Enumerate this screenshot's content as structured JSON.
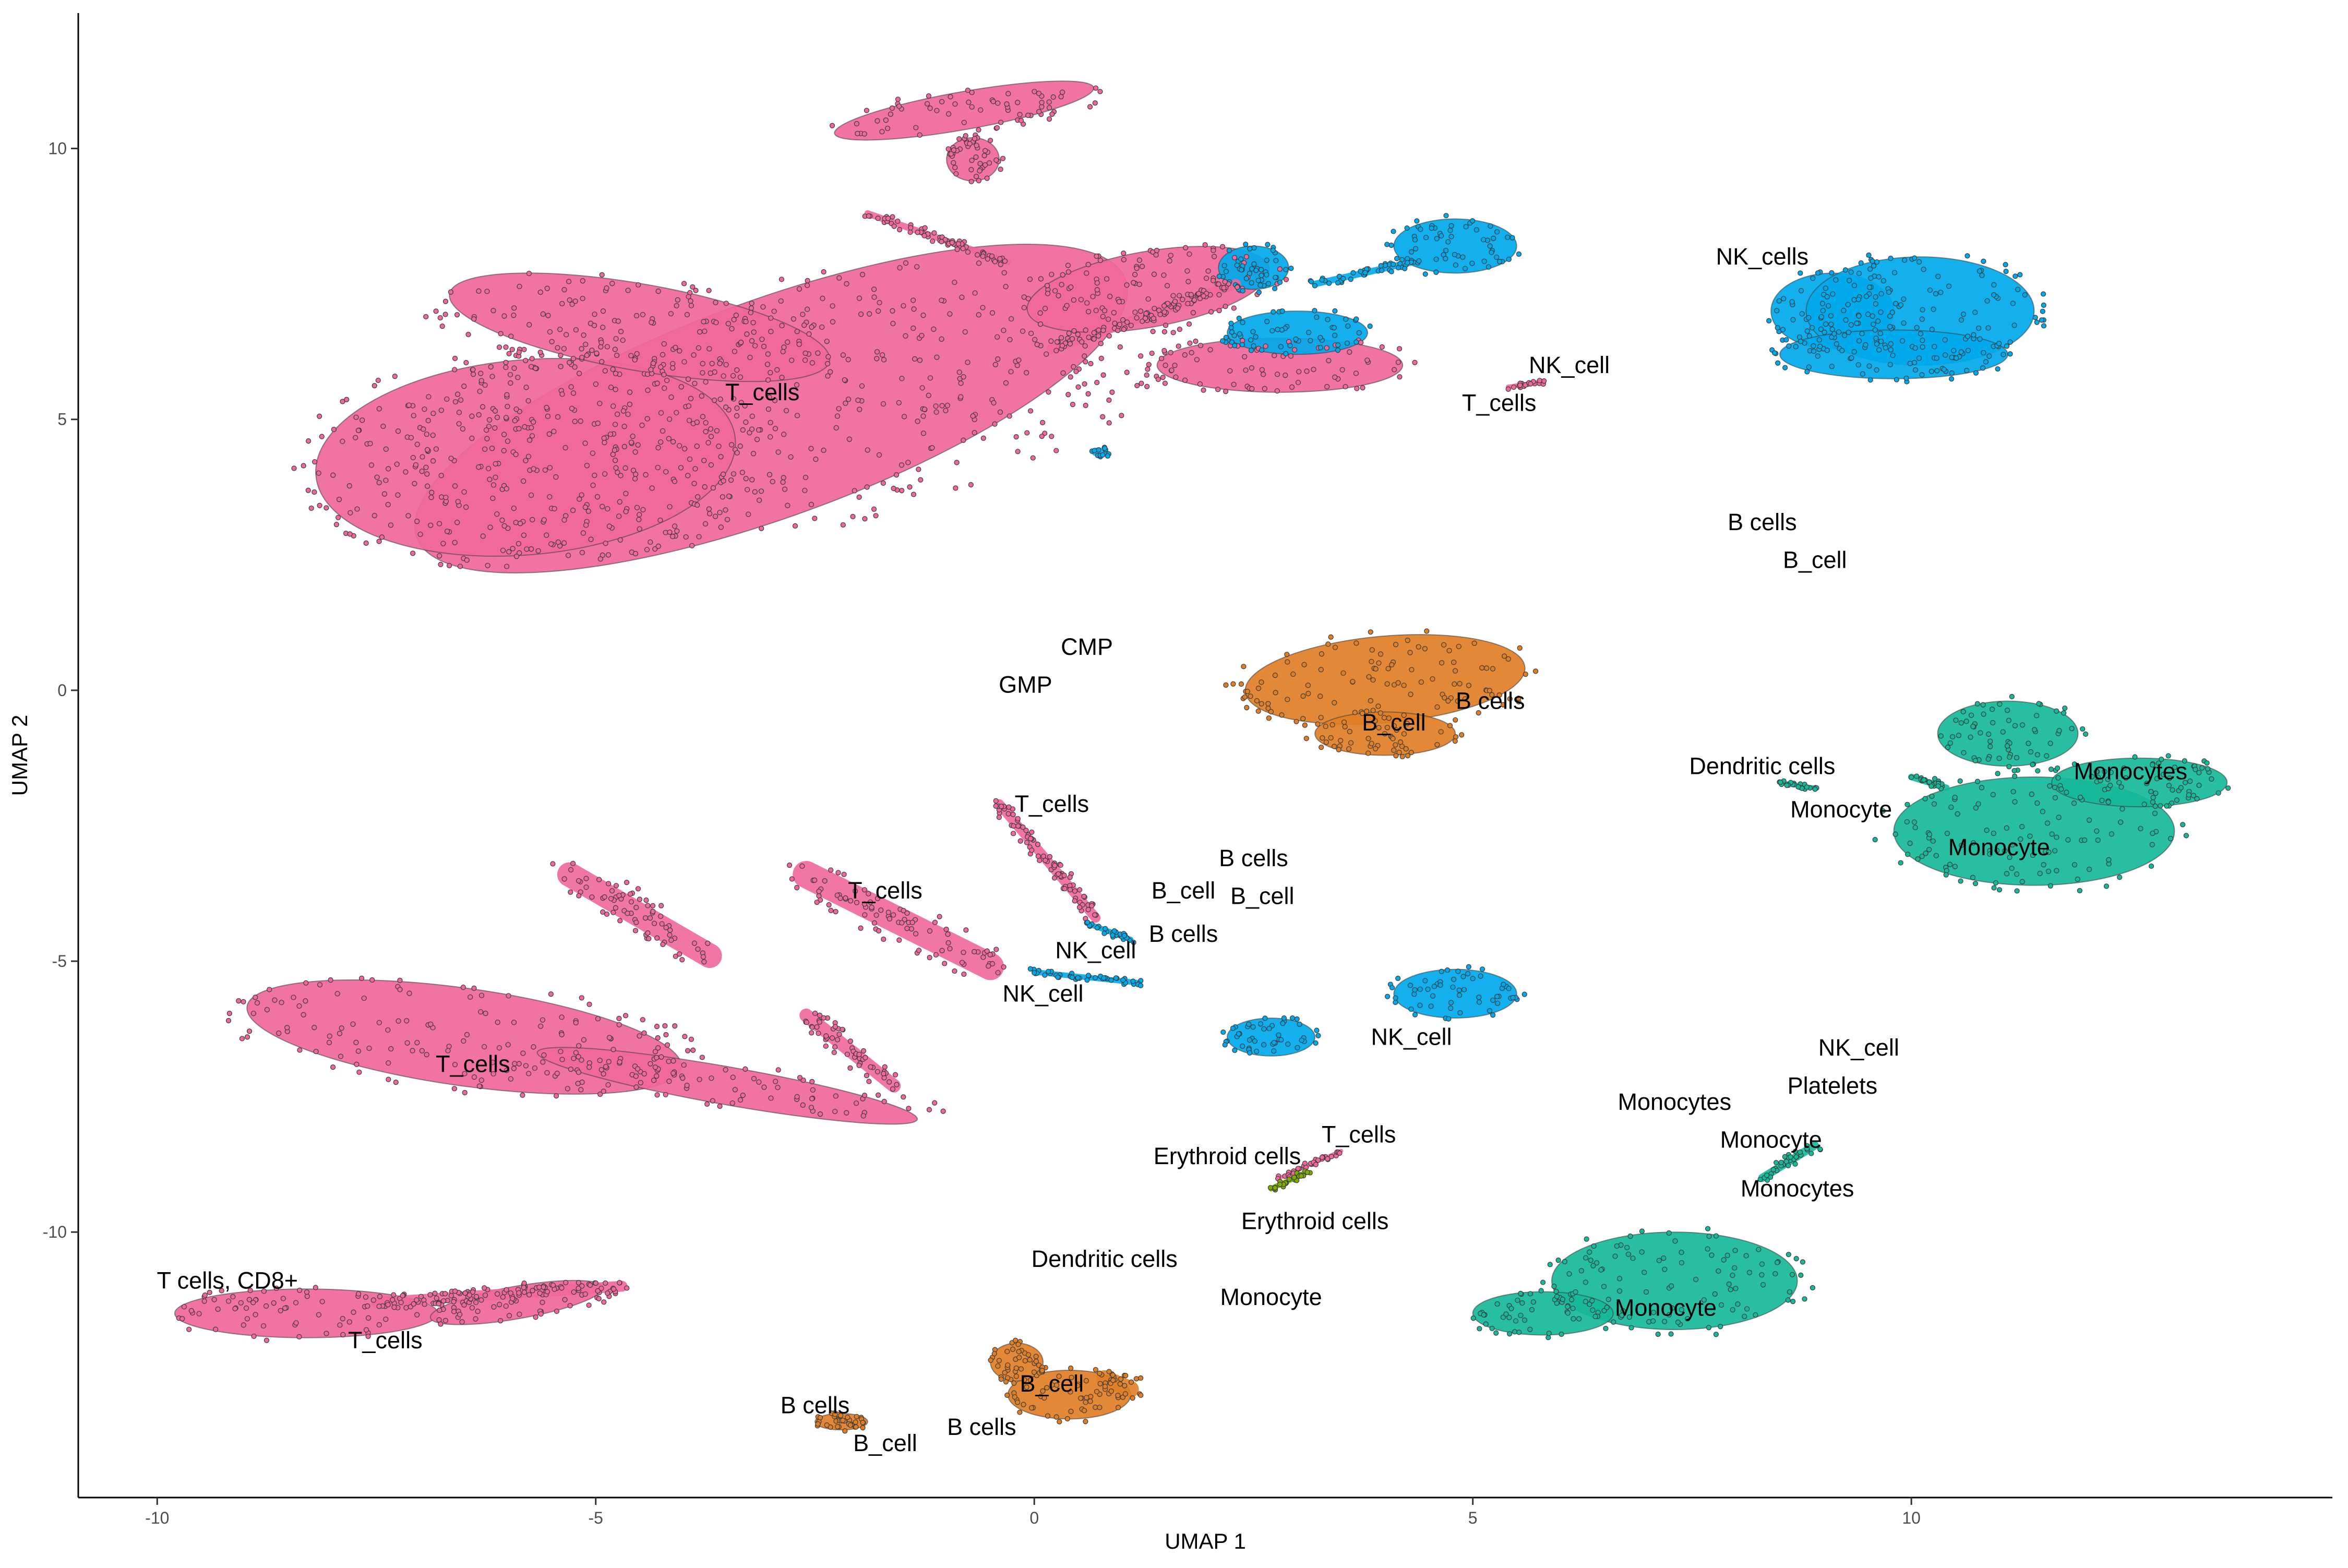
{
  "chart_data": {
    "type": "scatter",
    "title": "",
    "xlabel": "UMAP 1",
    "ylabel": "UMAP 2",
    "xlim": [
      -10.9,
      14.8
    ],
    "ylim": [
      -14.9,
      12.5
    ],
    "x_ticks": [
      -10,
      -5,
      0,
      5,
      10
    ],
    "y_ticks": [
      -10,
      -5,
      0,
      5,
      10
    ],
    "x_tick_labels": [
      "-10",
      "-5",
      "0",
      "5",
      "10"
    ],
    "y_tick_labels": [
      "-10",
      "-5",
      "0",
      "5",
      "10"
    ],
    "grid": false,
    "legend": "none",
    "colors": {
      "T_cells": "#f0679b",
      "NK_cells": "#00a9ec",
      "B_cells": "#e07e25",
      "Monocytes": "#16b89a",
      "Erythroid": "#7cae00",
      "Dendritic": "#c77cff",
      "Platelets": "#9590ff",
      "outline": "#3b3b3b"
    },
    "clusters": [
      {
        "color": "T_cells",
        "cx": -3.0,
        "cy": 5.2,
        "rx": 4.3,
        "ry": 2.0,
        "rot": 20
      },
      {
        "color": "T_cells",
        "cx": -5.8,
        "cy": 4.3,
        "rx": 2.4,
        "ry": 1.8,
        "rot": 5
      },
      {
        "color": "T_cells",
        "cx": -4.5,
        "cy": 6.7,
        "rx": 2.2,
        "ry": 0.8,
        "rot": -10
      },
      {
        "color": "T_cells",
        "cx": 1.3,
        "cy": 7.4,
        "rx": 1.4,
        "ry": 0.7,
        "rot": 10
      },
      {
        "color": "T_cells",
        "cx": 2.8,
        "cy": 6.0,
        "rx": 1.4,
        "ry": 0.5,
        "rot": 0
      },
      {
        "color": "T_cells",
        "cx": -0.8,
        "cy": 10.7,
        "rx": 1.5,
        "ry": 0.35,
        "rot": 10
      },
      {
        "color": "T_cells",
        "cx": -0.7,
        "cy": 9.8,
        "rx": 0.3,
        "ry": 0.4,
        "rot": 0
      },
      {
        "color": "NK_cells",
        "cx": 4.8,
        "cy": 8.2,
        "rx": 0.7,
        "ry": 0.5,
        "rot": 0
      },
      {
        "color": "NK_cells",
        "cx": 3.0,
        "cy": 6.6,
        "rx": 0.8,
        "ry": 0.4,
        "rot": 0
      },
      {
        "color": "NK_cells",
        "cx": 2.5,
        "cy": 7.8,
        "rx": 0.4,
        "ry": 0.4,
        "rot": 0
      },
      {
        "color": "NK_cells",
        "cx": 9.1,
        "cy": 7.0,
        "rx": 0.7,
        "ry": 0.7,
        "rot": 0
      },
      {
        "color": "NK_cells",
        "cx": 10.1,
        "cy": 7.0,
        "rx": 1.3,
        "ry": 1.0,
        "rot": 0
      },
      {
        "color": "NK_cells",
        "cx": 9.8,
        "cy": 6.2,
        "rx": 1.3,
        "ry": 0.45,
        "rot": 0
      },
      {
        "color": "B_cells",
        "cx": 4.0,
        "cy": 0.2,
        "rx": 1.6,
        "ry": 0.8,
        "rot": 5
      },
      {
        "color": "B_cells",
        "cx": 4.0,
        "cy": -0.8,
        "rx": 0.8,
        "ry": 0.4,
        "rot": 0
      },
      {
        "color": "Monocytes",
        "cx": 11.4,
        "cy": -2.6,
        "rx": 1.6,
        "ry": 1.0,
        "rot": 0
      },
      {
        "color": "Monocytes",
        "cx": 11.1,
        "cy": -0.8,
        "rx": 0.8,
        "ry": 0.6,
        "rot": 0
      },
      {
        "color": "Monocytes",
        "cx": 12.6,
        "cy": -1.7,
        "rx": 1.0,
        "ry": 0.45,
        "rot": 0
      },
      {
        "color": "T_cells",
        "cx": -6.5,
        "cy": -6.4,
        "rx": 2.5,
        "ry": 0.9,
        "rot": -8
      },
      {
        "color": "T_cells",
        "cx": -3.5,
        "cy": -7.3,
        "rx": 2.2,
        "ry": 0.35,
        "rot": -10
      },
      {
        "color": "T_cells",
        "cx": -8.3,
        "cy": -11.5,
        "rx": 1.5,
        "ry": 0.45,
        "rot": 0
      },
      {
        "color": "T_cells",
        "cx": -5.9,
        "cy": -11.3,
        "rx": 1.0,
        "ry": 0.3,
        "rot": 10
      },
      {
        "color": "NK_cells",
        "cx": 4.8,
        "cy": -5.6,
        "rx": 0.7,
        "ry": 0.45,
        "rot": 0
      },
      {
        "color": "NK_cells",
        "cx": 2.7,
        "cy": -6.4,
        "rx": 0.5,
        "ry": 0.35,
        "rot": 0
      },
      {
        "color": "Monocytes",
        "cx": 7.3,
        "cy": -10.9,
        "rx": 1.4,
        "ry": 0.9,
        "rot": 0
      },
      {
        "color": "Monocytes",
        "cx": 5.8,
        "cy": -11.5,
        "rx": 0.8,
        "ry": 0.4,
        "rot": 0
      },
      {
        "color": "B_cells",
        "cx": 0.4,
        "cy": -13.0,
        "rx": 0.7,
        "ry": 0.45,
        "rot": 0
      },
      {
        "color": "B_cells",
        "cx": -0.2,
        "cy": -12.4,
        "rx": 0.3,
        "ry": 0.35,
        "rot": 0
      },
      {
        "color": "B_cells",
        "cx": -2.2,
        "cy": -13.5,
        "rx": 0.3,
        "ry": 0.15,
        "rot": 0
      }
    ],
    "streaks": [
      {
        "color": "T_cells",
        "x1": -5.3,
        "y1": -3.4,
        "x2": -3.7,
        "y2": -4.9,
        "w": 0.45
      },
      {
        "color": "T_cells",
        "x1": -2.6,
        "y1": -3.4,
        "x2": -0.5,
        "y2": -5.1,
        "w": 0.5
      },
      {
        "color": "T_cells",
        "x1": -0.4,
        "y1": -2.1,
        "x2": 0.7,
        "y2": -4.2,
        "w": 0.18
      },
      {
        "color": "NK_cells",
        "x1": 0.6,
        "y1": -4.3,
        "x2": 1.1,
        "y2": -4.6,
        "w": 0.1
      },
      {
        "color": "NK_cells",
        "x1": 0.0,
        "y1": -5.2,
        "x2": 1.2,
        "y2": -5.4,
        "w": 0.1
      },
      {
        "color": "T_cells",
        "x1": -2.6,
        "y1": -6.0,
        "x2": -1.6,
        "y2": -7.3,
        "w": 0.25
      },
      {
        "color": "T_cells",
        "x1": -7.5,
        "y1": -11.3,
        "x2": -4.7,
        "y2": -11.0,
        "w": 0.2
      },
      {
        "color": "T_cells",
        "x1": -1.9,
        "y1": 8.8,
        "x2": -0.3,
        "y2": 7.9,
        "w": 0.12
      },
      {
        "color": "T_cells",
        "x1": 0.2,
        "y1": 6.3,
        "x2": 2.3,
        "y2": 7.5,
        "w": 0.18
      },
      {
        "color": "NK_cells",
        "x1": 3.2,
        "y1": 7.5,
        "x2": 4.3,
        "y2": 7.9,
        "w": 0.12
      },
      {
        "color": "NK_cells",
        "x1": 0.7,
        "y1": 4.4,
        "x2": 0.8,
        "y2": 4.4,
        "w": 0.15
      },
      {
        "color": "T_cells",
        "x1": 5.4,
        "y1": 5.6,
        "x2": 5.8,
        "y2": 5.7,
        "w": 0.08
      },
      {
        "color": "Monocytes",
        "x1": 10.0,
        "y1": -1.6,
        "x2": 10.4,
        "y2": -1.8,
        "w": 0.12
      },
      {
        "color": "Monocytes",
        "x1": 8.5,
        "y1": -1.7,
        "x2": 8.9,
        "y2": -1.8,
        "w": 0.08
      },
      {
        "color": "T_cells",
        "x1": 2.8,
        "y1": -9.0,
        "x2": 3.5,
        "y2": -8.5,
        "w": 0.07
      },
      {
        "color": "Erythroid",
        "x1": 2.7,
        "y1": -9.2,
        "x2": 3.1,
        "y2": -8.9,
        "w": 0.1
      },
      {
        "color": "Monocytes",
        "x1": 8.3,
        "y1": -9.0,
        "x2": 8.9,
        "y2": -8.4,
        "w": 0.15
      },
      {
        "color": "B_cells",
        "x1": 0.8,
        "y1": -12.7,
        "x2": 1.1,
        "y2": -12.9,
        "w": 0.3
      }
    ],
    "annotations": [
      {
        "text": "T_cells",
        "x": -3.1,
        "y": 5.5
      },
      {
        "text": "NK_cells",
        "x": 8.3,
        "y": 8.0
      },
      {
        "text": "NK_cell",
        "x": 6.1,
        "y": 6.0
      },
      {
        "text": "T_cells",
        "x": 5.3,
        "y": 5.3
      },
      {
        "text": "B cells",
        "x": 8.3,
        "y": 3.1
      },
      {
        "text": "B_cell",
        "x": 8.9,
        "y": 2.4
      },
      {
        "text": "CMP",
        "x": 0.6,
        "y": 0.8
      },
      {
        "text": "GMP",
        "x": -0.1,
        "y": 0.1
      },
      {
        "text": "B cells",
        "x": 5.2,
        "y": -0.2
      },
      {
        "text": "B_cell",
        "x": 4.1,
        "y": -0.6
      },
      {
        "text": "Dendritic cells",
        "x": 8.3,
        "y": -1.4
      },
      {
        "text": "Monocytes",
        "x": 12.5,
        "y": -1.5
      },
      {
        "text": "Monocyte",
        "x": 9.2,
        "y": -2.2
      },
      {
        "text": "Monocyte",
        "x": 11.0,
        "y": -2.9
      },
      {
        "text": "T_cells",
        "x": 0.2,
        "y": -2.1
      },
      {
        "text": "B cells",
        "x": 2.5,
        "y": -3.1
      },
      {
        "text": "B_cell",
        "x": 1.7,
        "y": -3.7
      },
      {
        "text": "B_cell",
        "x": 2.6,
        "y": -3.8
      },
      {
        "text": "B cells",
        "x": 1.7,
        "y": -4.5
      },
      {
        "text": "T_cells",
        "x": -1.7,
        "y": -3.7
      },
      {
        "text": "NK_cell",
        "x": 0.7,
        "y": -4.8
      },
      {
        "text": "NK_cell",
        "x": 0.1,
        "y": -5.6
      },
      {
        "text": "NK_cell",
        "x": 4.3,
        "y": -6.4
      },
      {
        "text": "T_cells",
        "x": -6.4,
        "y": -6.9
      },
      {
        "text": "NK_cell",
        "x": 9.4,
        "y": -6.6
      },
      {
        "text": "Platelets",
        "x": 9.1,
        "y": -7.3
      },
      {
        "text": "Monocytes",
        "x": 7.3,
        "y": -7.6
      },
      {
        "text": "Monocyte",
        "x": 8.4,
        "y": -8.3
      },
      {
        "text": "T_cells",
        "x": 3.7,
        "y": -8.2
      },
      {
        "text": "Erythroid cells",
        "x": 2.2,
        "y": -8.6
      },
      {
        "text": "Erythroid cells",
        "x": 3.2,
        "y": -9.8
      },
      {
        "text": "Monocytes",
        "x": 8.7,
        "y": -9.2
      },
      {
        "text": "Dendritic cells",
        "x": 0.8,
        "y": -10.5
      },
      {
        "text": "Monocyte",
        "x": 2.7,
        "y": -11.2
      },
      {
        "text": "Monocyte",
        "x": 7.2,
        "y": -11.4
      },
      {
        "text": "T cells, CD8+",
        "x": -9.2,
        "y": -10.9
      },
      {
        "text": "T_cells",
        "x": -7.4,
        "y": -12.0
      },
      {
        "text": "B_cell",
        "x": 0.2,
        "y": -12.8
      },
      {
        "text": "B cells",
        "x": -2.5,
        "y": -13.2
      },
      {
        "text": "B cells",
        "x": -0.6,
        "y": -13.6
      },
      {
        "text": "B_cell",
        "x": -1.7,
        "y": -13.9
      }
    ]
  }
}
